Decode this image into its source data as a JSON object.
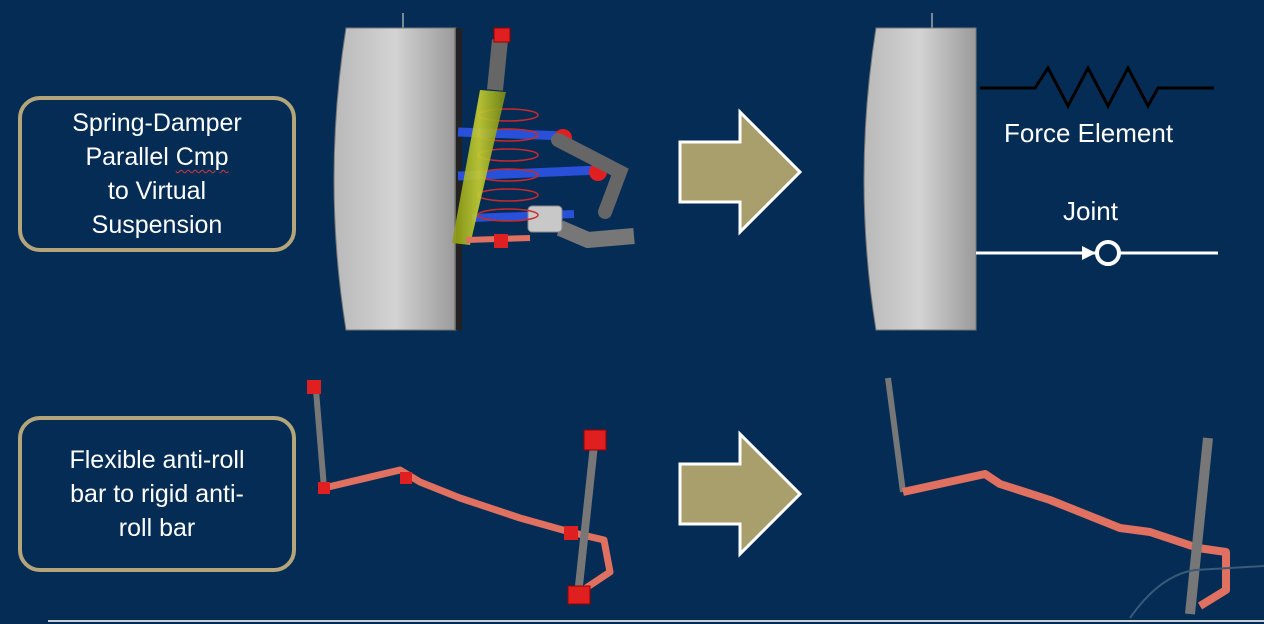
{
  "top_box": {
    "line1": "Spring-Damper",
    "line2_a": "Parallel ",
    "line2_b": "Cmp",
    "line3": "to Virtual",
    "line4": "Suspension"
  },
  "bottom_box": {
    "line1": "Flexible anti-roll",
    "line2": "bar to rigid anti-",
    "line3": "roll bar"
  },
  "labels": {
    "force_element": "Force Element",
    "joint": "Joint"
  },
  "colors": {
    "background": "#052c55",
    "box_border": "#b4a67a",
    "arrow": "#a99f6c",
    "anti_roll_bar": "#e07060",
    "spring": "#cc2a2a",
    "wheel": "#c8c8c8"
  }
}
